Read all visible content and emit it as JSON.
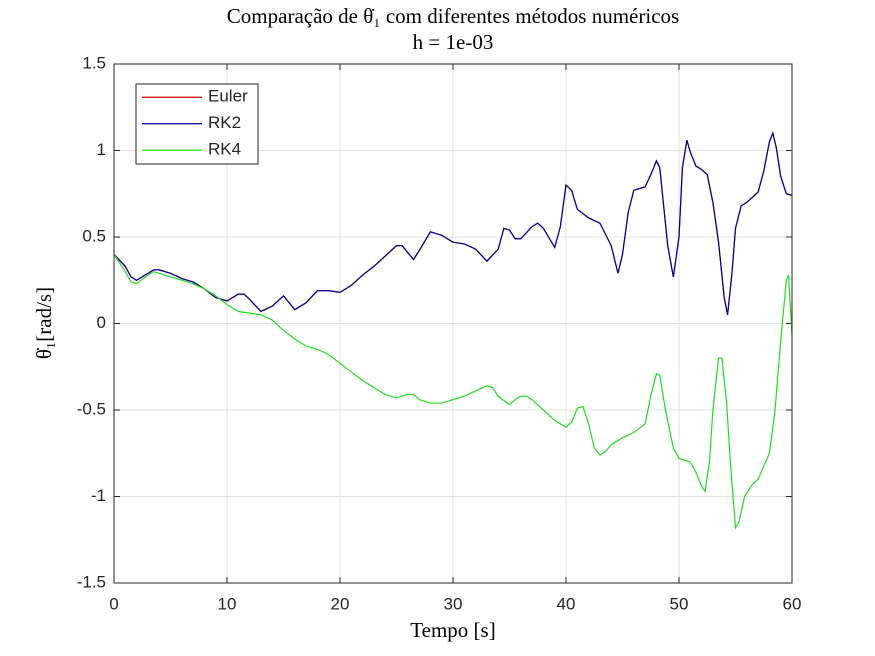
{
  "chart_data": {
    "type": "line",
    "title": "Comparação de θ̇₁ com diferentes métodos numéricos",
    "subtitle": "h = 1e-03",
    "x_label": "Tempo [s]",
    "y_label": "θ̇₁[rad/s]",
    "xlim": [
      0,
      60
    ],
    "xticks": [
      0,
      10,
      20,
      30,
      40,
      50,
      60
    ],
    "ylim": [
      -1.5,
      1.5
    ],
    "yticks": [
      -1.5,
      -1,
      -0.5,
      0,
      0.5,
      1,
      1.5
    ],
    "grid": true,
    "legend": "upper-left",
    "series": [
      {
        "name": "Euler",
        "color": "#cc0000",
        "x": [
          0,
          1,
          1.5,
          2,
          3,
          3.5,
          4,
          5,
          6,
          7,
          8,
          9,
          10,
          11,
          11.5,
          12,
          13,
          14,
          15,
          16,
          17,
          18,
          19,
          20,
          21,
          22,
          23,
          24,
          25,
          25.5,
          26,
          26.5,
          27,
          28,
          29,
          30,
          31,
          32,
          33,
          34,
          34.5,
          35,
          35.5,
          36,
          37,
          37.5,
          38,
          39,
          39.5,
          40,
          40.5,
          41,
          42,
          43,
          44,
          44.6,
          45,
          45.5,
          46,
          47,
          47.5,
          48,
          48.3,
          49,
          49.5,
          50,
          50.3,
          50.7,
          51,
          51.5,
          52,
          52.5,
          53,
          53.5,
          54,
          54.3,
          54.7,
          55,
          55.5,
          56,
          57,
          57.5,
          58,
          58.3,
          58.6,
          59,
          59.5,
          60
        ],
        "values": [
          0.4,
          0.33,
          0.27,
          0.25,
          0.29,
          0.31,
          0.31,
          0.29,
          0.26,
          0.24,
          0.2,
          0.15,
          0.13,
          0.17,
          0.17,
          0.14,
          0.07,
          0.1,
          0.16,
          0.08,
          0.12,
          0.19,
          0.19,
          0.18,
          0.22,
          0.28,
          0.33,
          0.39,
          0.45,
          0.45,
          0.41,
          0.37,
          0.42,
          0.53,
          0.51,
          0.47,
          0.46,
          0.43,
          0.36,
          0.43,
          0.55,
          0.54,
          0.49,
          0.49,
          0.56,
          0.58,
          0.55,
          0.44,
          0.56,
          0.8,
          0.77,
          0.66,
          0.61,
          0.58,
          0.45,
          0.29,
          0.4,
          0.64,
          0.77,
          0.79,
          0.86,
          0.94,
          0.9,
          0.45,
          0.27,
          0.5,
          0.9,
          1.06,
          0.99,
          0.91,
          0.89,
          0.86,
          0.7,
          0.47,
          0.15,
          0.05,
          0.3,
          0.55,
          0.68,
          0.7,
          0.76,
          0.88,
          1.05,
          1.1,
          1.02,
          0.85,
          0.75,
          0.74
        ]
      },
      {
        "name": "RK2",
        "color": "#0000a8",
        "x": [
          0,
          1,
          1.5,
          2,
          3,
          3.5,
          4,
          5,
          6,
          7,
          8,
          9,
          10,
          11,
          11.5,
          12,
          13,
          14,
          15,
          16,
          17,
          18,
          19,
          20,
          21,
          22,
          23,
          24,
          25,
          25.5,
          26,
          26.5,
          27,
          28,
          29,
          30,
          31,
          32,
          33,
          34,
          34.5,
          35,
          35.5,
          36,
          37,
          37.5,
          38,
          39,
          39.5,
          40,
          40.5,
          41,
          42,
          43,
          44,
          44.6,
          45,
          45.5,
          46,
          47,
          47.5,
          48,
          48.3,
          49,
          49.5,
          50,
          50.3,
          50.7,
          51,
          51.5,
          52,
          52.5,
          53,
          53.5,
          54,
          54.3,
          54.7,
          55,
          55.5,
          56,
          57,
          57.5,
          58,
          58.3,
          58.6,
          59,
          59.5,
          60
        ],
        "values": [
          0.4,
          0.33,
          0.27,
          0.25,
          0.29,
          0.31,
          0.31,
          0.29,
          0.26,
          0.24,
          0.2,
          0.15,
          0.13,
          0.17,
          0.17,
          0.14,
          0.07,
          0.1,
          0.16,
          0.08,
          0.12,
          0.19,
          0.19,
          0.18,
          0.22,
          0.28,
          0.33,
          0.39,
          0.45,
          0.45,
          0.41,
          0.37,
          0.42,
          0.53,
          0.51,
          0.47,
          0.46,
          0.43,
          0.36,
          0.43,
          0.55,
          0.54,
          0.49,
          0.49,
          0.56,
          0.58,
          0.55,
          0.44,
          0.56,
          0.8,
          0.77,
          0.66,
          0.61,
          0.58,
          0.45,
          0.29,
          0.4,
          0.64,
          0.77,
          0.79,
          0.86,
          0.94,
          0.9,
          0.45,
          0.27,
          0.5,
          0.9,
          1.06,
          0.99,
          0.91,
          0.89,
          0.86,
          0.7,
          0.47,
          0.15,
          0.05,
          0.3,
          0.55,
          0.68,
          0.7,
          0.76,
          0.88,
          1.05,
          1.1,
          1.02,
          0.85,
          0.75,
          0.74
        ]
      },
      {
        "name": "RK4",
        "color": "#22dd22",
        "x": [
          0,
          1,
          1.5,
          2,
          3,
          3.5,
          4,
          5,
          6,
          7,
          8,
          9,
          10,
          11,
          12,
          13,
          14,
          15,
          16,
          17,
          18,
          19,
          20,
          21,
          22,
          23,
          24,
          25,
          26,
          26.5,
          27,
          28,
          29,
          30,
          31,
          32,
          33,
          33.5,
          34,
          35,
          35.5,
          36,
          36.5,
          37,
          38,
          39,
          40,
          40.5,
          41,
          41.5,
          42,
          42.5,
          43,
          43.5,
          44,
          45,
          46,
          47,
          47.5,
          48,
          48.3,
          48.8,
          49.5,
          50,
          51,
          51.5,
          52,
          52.3,
          52.7,
          53,
          53.5,
          53.8,
          54.2,
          54.6,
          55,
          55.3,
          55.8,
          56.5,
          57,
          58,
          58.5,
          59,
          59.5,
          59.7,
          60
        ],
        "values": [
          0.4,
          0.3,
          0.24,
          0.23,
          0.28,
          0.3,
          0.29,
          0.27,
          0.25,
          0.23,
          0.2,
          0.16,
          0.11,
          0.07,
          0.06,
          0.05,
          0.02,
          -0.04,
          -0.09,
          -0.13,
          -0.15,
          -0.18,
          -0.23,
          -0.28,
          -0.33,
          -0.37,
          -0.41,
          -0.43,
          -0.41,
          -0.41,
          -0.44,
          -0.46,
          -0.46,
          -0.44,
          -0.42,
          -0.39,
          -0.36,
          -0.37,
          -0.42,
          -0.47,
          -0.44,
          -0.42,
          -0.42,
          -0.44,
          -0.5,
          -0.56,
          -0.6,
          -0.57,
          -0.49,
          -0.48,
          -0.58,
          -0.72,
          -0.76,
          -0.74,
          -0.7,
          -0.66,
          -0.63,
          -0.58,
          -0.42,
          -0.29,
          -0.3,
          -0.5,
          -0.72,
          -0.78,
          -0.8,
          -0.86,
          -0.94,
          -0.97,
          -0.8,
          -0.5,
          -0.2,
          -0.2,
          -0.45,
          -0.85,
          -1.18,
          -1.15,
          -1.0,
          -0.93,
          -0.9,
          -0.75,
          -0.5,
          -0.1,
          0.25,
          0.28,
          -0.07
        ]
      }
    ]
  }
}
